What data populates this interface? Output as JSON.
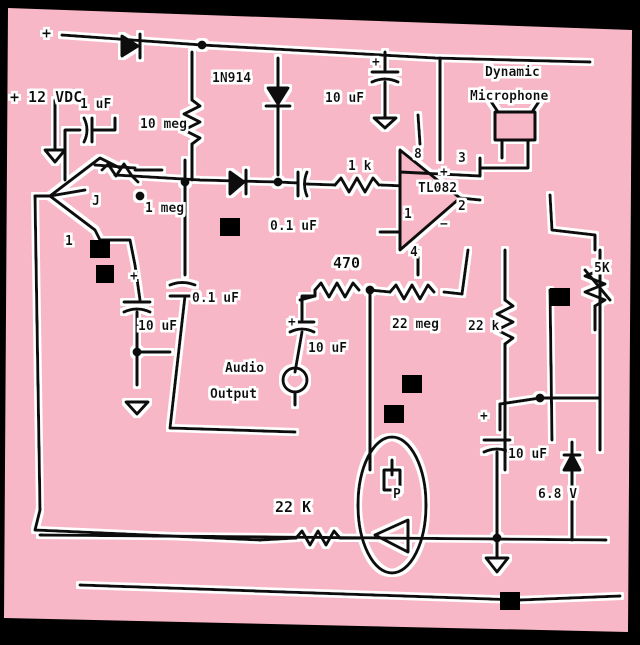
{
  "colors": {
    "paper": "#f7b7c6",
    "ink": "#111111",
    "halo": "#ffffff"
  },
  "supply": {
    "voltage": "+ 12 VDC",
    "plus": "+"
  },
  "input_cap": "1 uF",
  "input_cap_pin": "1",
  "r_bias_top": "10 meg",
  "r_bias_side": "1 meg",
  "diode_part": "1N914",
  "r_series": "1 k",
  "cap_coupling": "0.1 uF",
  "cap_supply": "10 uF",
  "cap_supply_plus": "+",
  "mic": {
    "label1": "Dynamic",
    "label2": "Microphone"
  },
  "opamp": {
    "part": "TL082",
    "pin_out": "1",
    "pin_inv": "2",
    "pin_noninv": "3",
    "pin_vcc": "8",
    "pin_gnd": "4",
    "plus": "+",
    "minus": "−"
  },
  "r_470": "470",
  "r_22meg": "22 meg",
  "r_22k_right": "22 k",
  "cap_10uf_left": "10 uF",
  "cap_10uf_left_plus": "+",
  "cap_01uf_left": "0.1 uF",
  "cap_audio": "10 uF",
  "cap_audio_plus": "+",
  "audio_output": {
    "line1": "Audio",
    "line2": "Output"
  },
  "pot_5k": "5K",
  "cap_10uf_right": "10 uF",
  "cap_10uf_right_plus": "+",
  "zener": "6.8 V",
  "r_22k_bottom": "22 K",
  "jfet": "J",
  "piezo": "P"
}
